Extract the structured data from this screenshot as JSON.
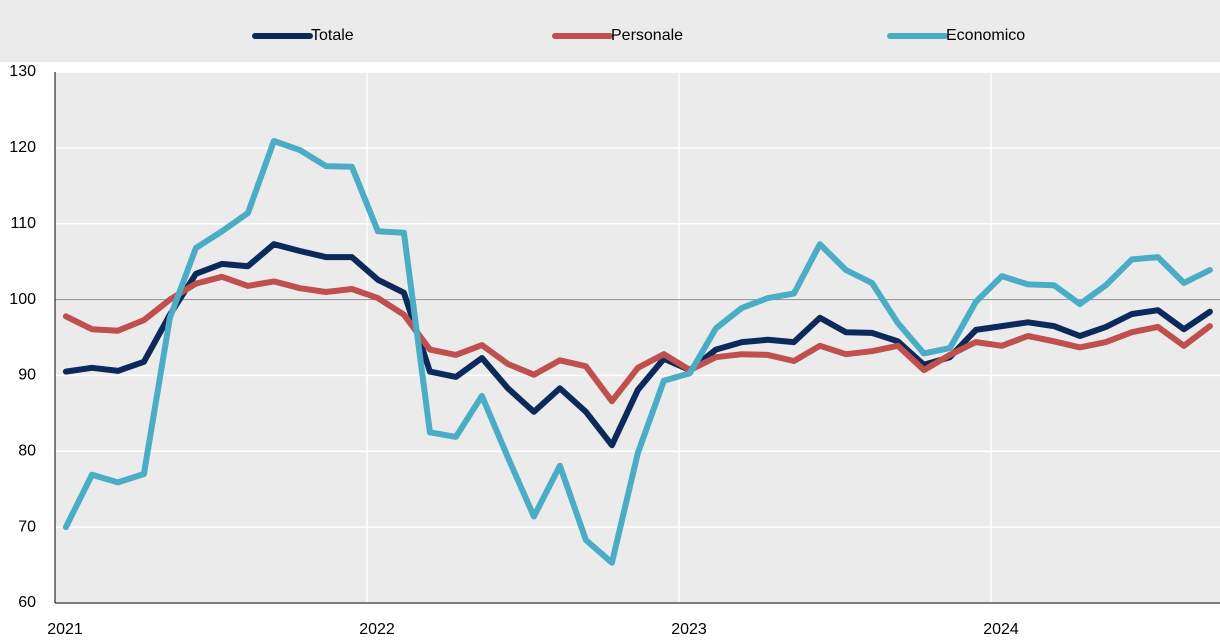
{
  "chart_data": {
    "type": "line",
    "categories": [
      "2021",
      null,
      null,
      null,
      null,
      null,
      null,
      null,
      null,
      null,
      null,
      null,
      "2022",
      null,
      null,
      null,
      null,
      null,
      null,
      null,
      null,
      null,
      null,
      null,
      "2023",
      null,
      null,
      null,
      null,
      null,
      null,
      null,
      null,
      null,
      null,
      null,
      "2024",
      null,
      null,
      null,
      null,
      null,
      null,
      null,
      null
    ],
    "series": [
      {
        "name": "Totale",
        "color": "#0b2a5b",
        "values": [
          90.5,
          91.0,
          90.6,
          91.8,
          98.0,
          103.4,
          104.7,
          104.4,
          107.3,
          106.4,
          105.6,
          105.6,
          102.6,
          100.9,
          90.5,
          89.8,
          92.3,
          88.3,
          85.2,
          88.3,
          85.2,
          80.8,
          88.1,
          92.2,
          90.7,
          93.4,
          94.4,
          94.7,
          94.4,
          97.6,
          95.7,
          95.6,
          94.5,
          91.4,
          92.4,
          96.0,
          96.5,
          97.0,
          96.5,
          95.2,
          96.4,
          98.1,
          98.6,
          96.1,
          98.4
        ]
      },
      {
        "name": "Personale",
        "color": "#c0504d",
        "values": [
          97.8,
          96.1,
          95.9,
          97.3,
          100.0,
          102.1,
          103.0,
          101.8,
          102.4,
          101.5,
          101.0,
          101.4,
          100.2,
          98.0,
          93.4,
          92.7,
          94.0,
          91.5,
          90.1,
          92.0,
          91.2,
          86.6,
          91.0,
          92.8,
          90.7,
          92.4,
          92.8,
          92.7,
          91.9,
          93.9,
          92.8,
          93.2,
          93.9,
          90.7,
          92.7,
          94.4,
          93.9,
          95.2,
          94.5,
          93.7,
          94.4,
          95.7,
          96.4,
          93.9,
          96.5
        ]
      },
      {
        "name": "Economico",
        "color": "#4bacc6",
        "values": [
          70.0,
          76.9,
          75.9,
          77.0,
          97.6,
          106.8,
          109.0,
          111.4,
          120.9,
          119.7,
          117.6,
          117.5,
          109.0,
          108.8,
          82.5,
          81.9,
          87.3,
          79.2,
          71.4,
          78.1,
          68.3,
          65.3,
          79.8,
          89.3,
          90.3,
          96.2,
          98.9,
          100.2,
          100.8,
          107.3,
          103.9,
          102.2,
          96.9,
          92.9,
          93.6,
          99.7,
          103.1,
          102.0,
          101.9,
          99.4,
          101.9,
          105.3,
          105.6,
          102.2,
          103.9
        ]
      }
    ],
    "ylim": [
      60,
      130
    ],
    "yticks": [
      60,
      70,
      80,
      90,
      100,
      110,
      120,
      130
    ],
    "reference_line": 100,
    "grid": true,
    "legend": "top"
  }
}
